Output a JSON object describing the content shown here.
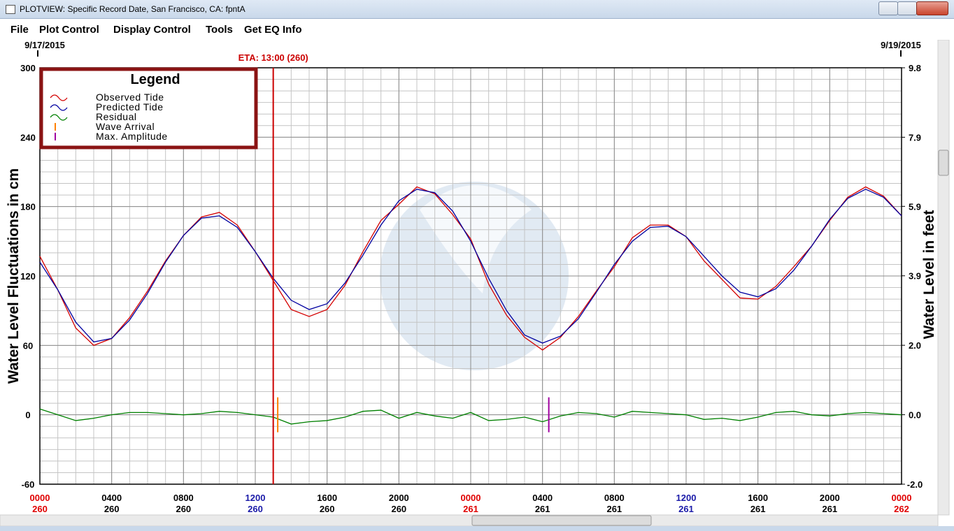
{
  "window": {
    "title": "PLOTVIEW: Specific Record Date, San Francisco, CA: fpntA"
  },
  "menu": [
    "File",
    "Plot Control",
    "Display Control",
    "Tools",
    "Get EQ Info"
  ],
  "chart_data": {
    "type": "line",
    "start_date": "9/17/2015",
    "end_date": "9/19/2015",
    "ylabel": "Water Level Fluctuations in cm",
    "y2label": "Water Level in feet",
    "legend_title": "Legend",
    "legend": "upper left",
    "grid": true,
    "x": [
      0,
      1,
      2,
      3,
      4,
      5,
      6,
      7,
      8,
      9,
      10,
      11,
      12,
      13,
      14,
      15,
      16,
      17,
      18,
      19,
      20,
      21,
      22,
      23,
      24,
      25,
      26,
      27,
      28,
      29,
      30,
      31,
      32,
      33,
      34,
      35,
      36,
      37,
      38,
      39,
      40,
      41,
      42,
      43,
      44,
      45,
      46,
      47,
      48
    ],
    "xlim": [
      0,
      48
    ],
    "xticks": [
      {
        "value": 0,
        "label": "0000"
      },
      {
        "value": 4,
        "label": "0400"
      },
      {
        "value": 8,
        "label": "0800"
      },
      {
        "value": 12,
        "label": "1200"
      },
      {
        "value": 16,
        "label": "1600"
      },
      {
        "value": 20,
        "label": "2000"
      },
      {
        "value": 24,
        "label": "0000"
      },
      {
        "value": 28,
        "label": "0400"
      },
      {
        "value": 32,
        "label": "0800"
      },
      {
        "value": 36,
        "label": "1200"
      },
      {
        "value": 40,
        "label": "1600"
      },
      {
        "value": 44,
        "label": "2000"
      },
      {
        "value": 48,
        "label": "0000"
      }
    ],
    "xtick_days": [
      "260",
      "260",
      "260",
      "260",
      "260",
      "260",
      "261",
      "261",
      "261",
      "261",
      "261",
      "261",
      "262"
    ],
    "xtick_colors": [
      "#e00000",
      "#000000",
      "#000000",
      "#1a1aa8",
      "#000000",
      "#000000",
      "#e00000",
      "#000000",
      "#000000",
      "#1a1aa8",
      "#000000",
      "#000000",
      "#e00000"
    ],
    "ylim": [
      -60,
      300
    ],
    "yticks": [
      -60,
      0,
      60,
      120,
      180,
      240,
      300
    ],
    "y2lim": [
      -1.97,
      9.84
    ],
    "y2ticks": [
      {
        "value": -1.97,
        "label": "-2.0"
      },
      {
        "value": 0,
        "label": "0.0"
      },
      {
        "value": 1.97,
        "label": "2.0"
      },
      {
        "value": 3.94,
        "label": "3.9"
      },
      {
        "value": 5.91,
        "label": "5.9"
      },
      {
        "value": 7.87,
        "label": "7.9"
      },
      {
        "value": 9.84,
        "label": "9.8"
      }
    ],
    "series": [
      {
        "name": "Observed Tide",
        "color": "#d40000",
        "values": [
          137,
          108,
          75,
          60,
          66,
          84,
          107,
          133,
          155,
          171,
          175,
          164,
          141,
          116,
          91,
          85,
          91,
          112,
          141,
          168,
          182,
          197,
          191,
          173,
          152,
          113,
          86,
          67,
          56,
          67,
          85,
          107,
          128,
          153,
          164,
          164,
          154,
          133,
          117,
          101,
          100,
          111,
          128,
          146,
          168,
          188,
          197,
          189,
          172
        ]
      },
      {
        "name": "Predicted Tide",
        "color": "#0000a0",
        "values": [
          132,
          108,
          80,
          63,
          66,
          82,
          105,
          132,
          155,
          170,
          172,
          162,
          141,
          118,
          99,
          91,
          96,
          114,
          138,
          164,
          185,
          195,
          192,
          176,
          150,
          118,
          90,
          69,
          62,
          68,
          83,
          106,
          130,
          150,
          162,
          163,
          154,
          137,
          120,
          106,
          102,
          109,
          125,
          146,
          169,
          187,
          195,
          188,
          172
        ]
      },
      {
        "name": "Residual",
        "color": "#008000",
        "values": [
          5,
          0,
          -5,
          -3,
          0,
          2,
          2,
          1,
          0,
          1,
          3,
          2,
          0,
          -2,
          -8,
          -6,
          -5,
          -2,
          3,
          4,
          -3,
          2,
          -1,
          -3,
          2,
          -5,
          -4,
          -2,
          -6,
          -1,
          2,
          1,
          -2,
          3,
          2,
          1,
          0,
          -4,
          -3,
          -5,
          -2,
          2,
          3,
          0,
          -1,
          1,
          2,
          1,
          0
        ]
      }
    ],
    "eta": {
      "label": "ETA: 13:00 (260)",
      "x": 13,
      "color": "#cc0000"
    },
    "markers": [
      {
        "name": "Wave Arrival",
        "color": "#ff8000",
        "x": 13.25
      },
      {
        "name": "Max. Amplitude",
        "color": "#a000a0",
        "x": 28.35
      }
    ]
  }
}
